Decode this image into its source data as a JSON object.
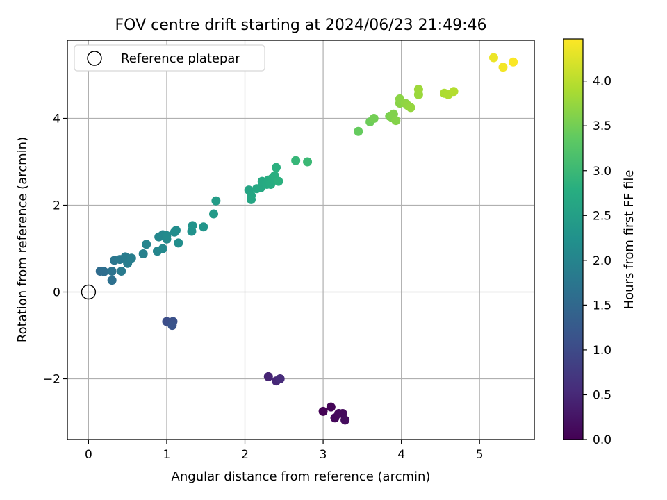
{
  "chart_data": {
    "type": "scatter",
    "title": "FOV centre drift starting at 2024/06/23 21:49:46",
    "xlabel": "Angular distance from reference (arcmin)",
    "ylabel": "Rotation from reference (arcmin)",
    "xlim": [
      -0.27,
      5.7
    ],
    "ylim": [
      -3.4,
      5.8
    ],
    "xticks": [
      0,
      1,
      2,
      3,
      4,
      5
    ],
    "xtick_labels": [
      "0",
      "1",
      "2",
      "3",
      "4",
      "5"
    ],
    "yticks": [
      -2,
      0,
      2,
      4
    ],
    "ytick_labels": [
      "−2",
      "0",
      "2",
      "4"
    ],
    "grid": true,
    "legend": {
      "placement": "top-left",
      "entries": [
        "Reference platepar"
      ]
    },
    "reference_point": {
      "x": 0,
      "y": 0,
      "label": "Reference platepar"
    },
    "colorbar": {
      "label": "Hours from first FF file",
      "colormap": "viridis",
      "range": [
        0,
        4.47
      ],
      "ticks": [
        0,
        0.5,
        1,
        1.5,
        2,
        2.5,
        3,
        3.5,
        4
      ],
      "tick_labels": [
        "0.0",
        "0.5",
        "1.0",
        "1.5",
        "2.0",
        "2.5",
        "3.0",
        "3.5",
        "4.0"
      ]
    },
    "series": [
      {
        "name": "FOV centre drift",
        "points": [
          [
            3.0,
            -2.75,
            0.02
          ],
          [
            3.1,
            -2.65,
            0.05
          ],
          [
            3.15,
            -2.9,
            0.08
          ],
          [
            3.2,
            -2.8,
            0.1
          ],
          [
            3.25,
            -2.8,
            0.12
          ],
          [
            3.28,
            -2.95,
            0.15
          ],
          [
            2.3,
            -1.95,
            0.45
          ],
          [
            2.4,
            -2.05,
            0.5
          ],
          [
            2.45,
            -2.0,
            0.55
          ],
          [
            1.0,
            -0.68,
            1.05
          ],
          [
            1.08,
            -0.68,
            1.1
          ],
          [
            1.07,
            -0.77,
            1.15
          ],
          [
            0.15,
            0.48,
            1.55
          ],
          [
            0.2,
            0.47,
            1.6
          ],
          [
            0.3,
            0.27,
            1.65
          ],
          [
            0.3,
            0.48,
            1.7
          ],
          [
            0.33,
            0.73,
            1.75
          ],
          [
            0.4,
            0.75,
            1.8
          ],
          [
            0.42,
            0.48,
            1.82
          ],
          [
            0.47,
            0.81,
            1.85
          ],
          [
            0.5,
            0.66,
            1.88
          ],
          [
            0.55,
            0.78,
            1.9
          ],
          [
            0.7,
            0.88,
            1.95
          ],
          [
            0.74,
            1.1,
            2.0
          ],
          [
            0.88,
            0.94,
            2.03
          ],
          [
            0.9,
            1.27,
            2.05
          ],
          [
            0.95,
            1.32,
            2.07
          ],
          [
            0.95,
            1.0,
            2.09
          ],
          [
            1.0,
            1.22,
            2.1
          ],
          [
            1.0,
            1.3,
            2.12
          ],
          [
            1.1,
            1.38,
            2.14
          ],
          [
            1.12,
            1.42,
            2.16
          ],
          [
            1.15,
            1.13,
            2.18
          ],
          [
            1.32,
            1.4,
            2.25
          ],
          [
            1.33,
            1.53,
            2.28
          ],
          [
            1.47,
            1.5,
            2.32
          ],
          [
            1.6,
            1.8,
            2.4
          ],
          [
            1.63,
            2.1,
            2.45
          ],
          [
            2.05,
            2.35,
            2.6
          ],
          [
            2.08,
            2.13,
            2.62
          ],
          [
            2.08,
            2.22,
            2.64
          ],
          [
            2.15,
            2.38,
            2.66
          ],
          [
            2.2,
            2.4,
            2.68
          ],
          [
            2.22,
            2.55,
            2.7
          ],
          [
            2.28,
            2.48,
            2.72
          ],
          [
            2.3,
            2.58,
            2.74
          ],
          [
            2.33,
            2.48,
            2.76
          ],
          [
            2.35,
            2.62,
            2.78
          ],
          [
            2.38,
            2.68,
            2.8
          ],
          [
            2.4,
            2.87,
            2.82
          ],
          [
            2.43,
            2.55,
            2.84
          ],
          [
            2.65,
            3.03,
            2.95
          ],
          [
            2.8,
            3.0,
            3.0
          ],
          [
            3.45,
            3.7,
            3.4
          ],
          [
            3.6,
            3.92,
            3.45
          ],
          [
            3.65,
            4.0,
            3.5
          ],
          [
            3.85,
            4.05,
            3.55
          ],
          [
            3.88,
            4.02,
            3.58
          ],
          [
            3.9,
            4.1,
            3.6
          ],
          [
            3.93,
            3.95,
            3.62
          ],
          [
            3.98,
            4.35,
            3.65
          ],
          [
            3.98,
            4.45,
            3.67
          ],
          [
            4.05,
            4.35,
            3.7
          ],
          [
            4.08,
            4.3,
            3.72
          ],
          [
            4.12,
            4.25,
            3.74
          ],
          [
            4.22,
            4.55,
            3.78
          ],
          [
            4.22,
            4.67,
            3.8
          ],
          [
            4.55,
            4.58,
            3.9
          ],
          [
            4.6,
            4.55,
            3.92
          ],
          [
            4.67,
            4.62,
            3.95
          ],
          [
            5.18,
            5.4,
            4.35
          ],
          [
            5.3,
            5.18,
            4.4
          ],
          [
            5.43,
            5.3,
            4.45
          ]
        ]
      }
    ]
  }
}
